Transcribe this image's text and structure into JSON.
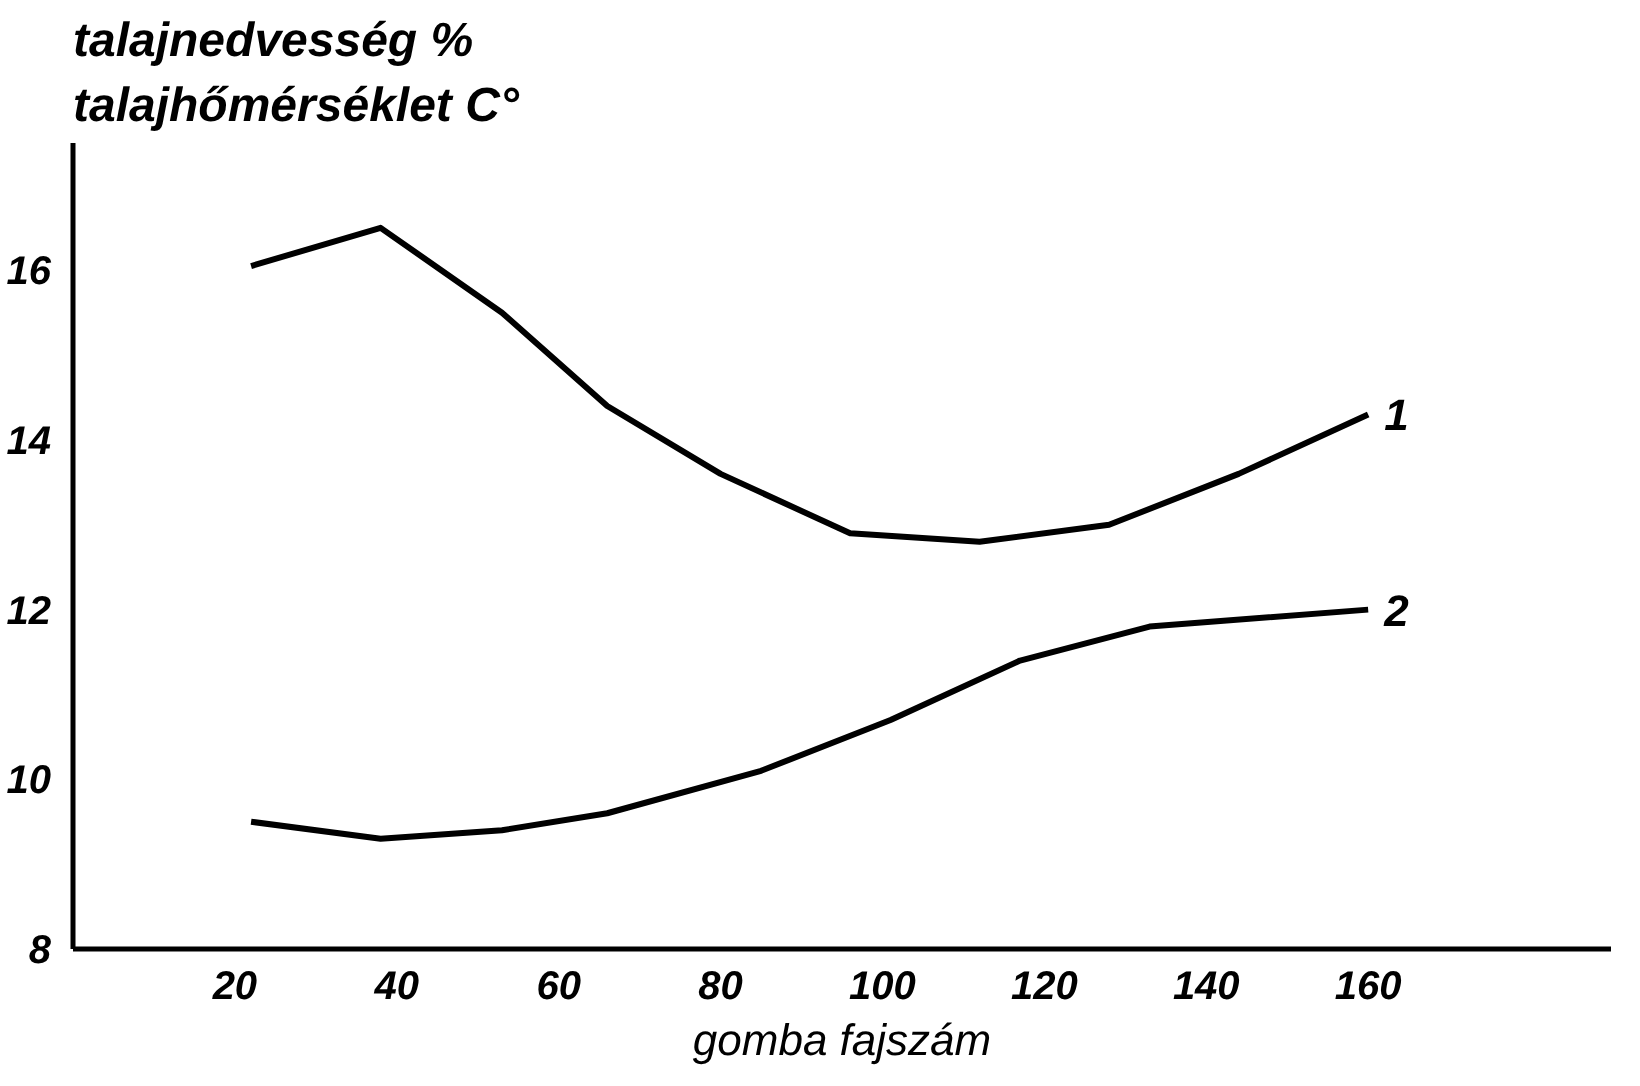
{
  "chart_data": {
    "type": "line",
    "ylabel": "talajnedvesség %\ntalajhőmérséklet C°",
    "xlabel": "gomba fajszám",
    "xlim": [
      0,
      190
    ],
    "ylim": [
      8,
      17.5
    ],
    "xticks": [
      20,
      40,
      60,
      80,
      100,
      120,
      140,
      160
    ],
    "yticks": [
      8,
      10,
      12,
      14,
      16
    ],
    "grid": false,
    "marker": "none",
    "line_style": "solid",
    "series": [
      {
        "name": "1",
        "color": "#000000",
        "x": [
          22,
          38,
          53,
          66,
          80,
          96,
          112,
          128,
          144,
          160
        ],
        "values": [
          16.05,
          16.5,
          15.5,
          14.4,
          13.6,
          12.9,
          12.8,
          13.0,
          13.6,
          14.3
        ]
      },
      {
        "name": "2",
        "color": "#000000",
        "x": [
          22,
          38,
          53,
          66,
          85,
          101,
          117,
          133,
          160
        ],
        "values": [
          9.5,
          9.3,
          9.4,
          9.6,
          10.1,
          10.7,
          11.4,
          11.8,
          12.0
        ]
      }
    ]
  }
}
